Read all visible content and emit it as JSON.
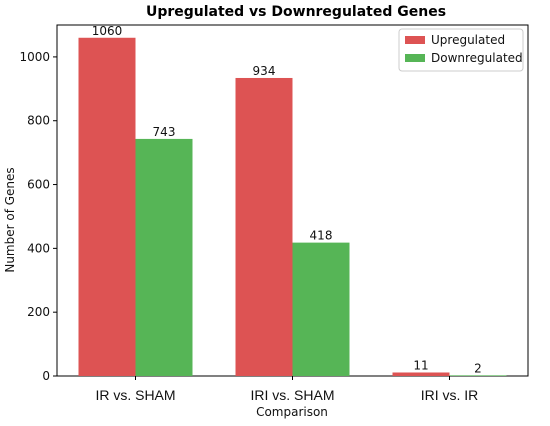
{
  "chart_data": {
    "type": "bar",
    "title": "Upregulated vs Downregulated Genes",
    "xlabel": "Comparison",
    "ylabel": "Number of Genes",
    "categories": [
      "IR vs. SHAM",
      "IRI vs. SHAM",
      "IRI vs. IR"
    ],
    "series": [
      {
        "name": "Upregulated",
        "values": [
          1060,
          934,
          11
        ],
        "color": "#dd5353"
      },
      {
        "name": "Downregulated",
        "values": [
          743,
          418,
          2
        ],
        "color": "#56b556"
      }
    ],
    "ylim": [
      0,
      1100
    ],
    "yticks": [
      0,
      200,
      400,
      600,
      800,
      1000
    ],
    "grid": false,
    "legend_position": "top-right"
  }
}
